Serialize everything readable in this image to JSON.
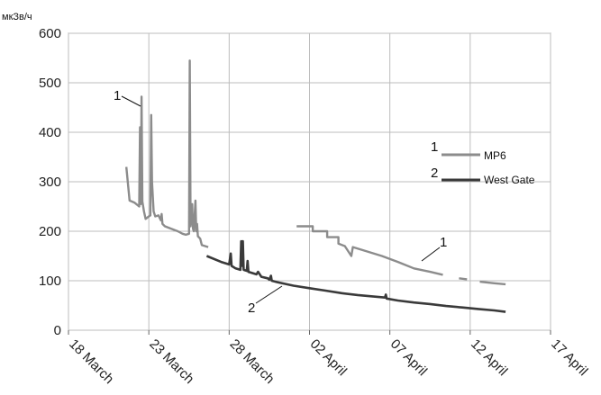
{
  "chart_data": {
    "type": "line",
    "ylabel": "мкЗв/ч",
    "ylim": [
      0,
      600
    ],
    "yticks": [
      "0",
      "100",
      "200",
      "300",
      "400",
      "500",
      "600"
    ],
    "xticks": [
      "18 March",
      "23 March",
      "28 March",
      "02 April",
      "07 April",
      "12 April",
      "17 April"
    ],
    "xlim_days": [
      0,
      30
    ],
    "grid": true,
    "legend_position": "right-middle",
    "series": [
      {
        "name": "MP6",
        "number": "1",
        "color": "#8c8c8c",
        "segments": [
          [
            [
              3.6,
              330
            ],
            [
              3.8,
              262
            ],
            [
              4.1,
              258
            ],
            [
              4.4,
              250
            ],
            [
              4.45,
              410
            ],
            [
              4.5,
              255
            ],
            [
              4.55,
              472
            ],
            [
              4.6,
              260
            ],
            [
              4.7,
              240
            ],
            [
              4.8,
              225
            ],
            [
              5.0,
              230
            ],
            [
              5.1,
              232
            ],
            [
              5.15,
              435
            ],
            [
              5.2,
              300
            ],
            [
              5.3,
              240
            ],
            [
              5.4,
              230
            ],
            [
              5.6,
              232
            ],
            [
              5.75,
              222
            ],
            [
              5.8,
              235
            ],
            [
              5.85,
              215
            ],
            [
              6.0,
              210
            ],
            [
              6.4,
              205
            ],
            [
              6.8,
              200
            ],
            [
              7.1,
              195
            ],
            [
              7.3,
              193
            ],
            [
              7.5,
              195
            ],
            [
              7.55,
              545
            ],
            [
              7.6,
              210
            ],
            [
              7.7,
              255
            ],
            [
              7.75,
              205
            ],
            [
              7.8,
              200
            ],
            [
              7.9,
              262
            ],
            [
              7.95,
              200
            ],
            [
              8.0,
              215
            ],
            [
              8.05,
              190
            ],
            [
              8.2,
              185
            ],
            [
              8.3,
              172
            ],
            [
              8.7,
              168
            ]
          ],
          [
            [
              14.2,
              210
            ],
            [
              15.2,
              210
            ],
            [
              15.2,
              200
            ],
            [
              16.1,
              200
            ],
            [
              16.1,
              188
            ],
            [
              16.8,
              188
            ],
            [
              16.8,
              175
            ],
            [
              17.2,
              170
            ],
            [
              17.6,
              150
            ],
            [
              17.7,
              168
            ],
            [
              18.5,
              160
            ],
            [
              19.5,
              150
            ],
            [
              20.5,
              138
            ],
            [
              21.5,
              125
            ],
            [
              22.5,
              118
            ],
            [
              23.3,
              112
            ]
          ],
          [
            [
              24.3,
              105
            ],
            [
              24.8,
              103
            ]
          ],
          [
            [
              25.6,
              98
            ],
            [
              26.5,
              95
            ],
            [
              27.2,
              93
            ]
          ]
        ]
      },
      {
        "name": "West Gate",
        "number": "2",
        "color": "#3a3a3a",
        "segments": [
          [
            [
              8.6,
              150
            ],
            [
              9.5,
              138
            ],
            [
              10.0,
              133
            ],
            [
              10.1,
              155
            ],
            [
              10.15,
              130
            ],
            [
              10.4,
              125
            ],
            [
              10.7,
              122
            ],
            [
              10.75,
              180
            ],
            [
              10.8,
              130
            ],
            [
              10.85,
              180
            ],
            [
              10.9,
              122
            ],
            [
              11.1,
              120
            ],
            [
              11.15,
              140
            ],
            [
              11.2,
              118
            ],
            [
              11.7,
              113
            ],
            [
              11.8,
              118
            ],
            [
              12.0,
              108
            ],
            [
              12.4,
              105
            ],
            [
              12.5,
              102
            ],
            [
              12.6,
              110
            ],
            [
              12.65,
              100
            ],
            [
              13.0,
              97
            ],
            [
              14.0,
              90
            ],
            [
              15.0,
              85
            ],
            [
              16.0,
              80
            ],
            [
              17.0,
              75
            ],
            [
              18.0,
              71
            ],
            [
              19.0,
              68
            ],
            [
              19.7,
              66
            ],
            [
              19.75,
              72
            ],
            [
              19.8,
              64
            ],
            [
              20.5,
              60
            ],
            [
              21.5,
              56
            ],
            [
              22.5,
              53
            ],
            [
              23.5,
              49
            ],
            [
              24.5,
              46
            ],
            [
              25.5,
              43
            ],
            [
              26.5,
              40
            ],
            [
              27.2,
              37
            ]
          ]
        ]
      }
    ],
    "annotations": [
      {
        "text": "1",
        "series": "MP6"
      },
      {
        "text": "1",
        "series": "MP6"
      },
      {
        "text": "2",
        "series": "West Gate"
      }
    ]
  }
}
